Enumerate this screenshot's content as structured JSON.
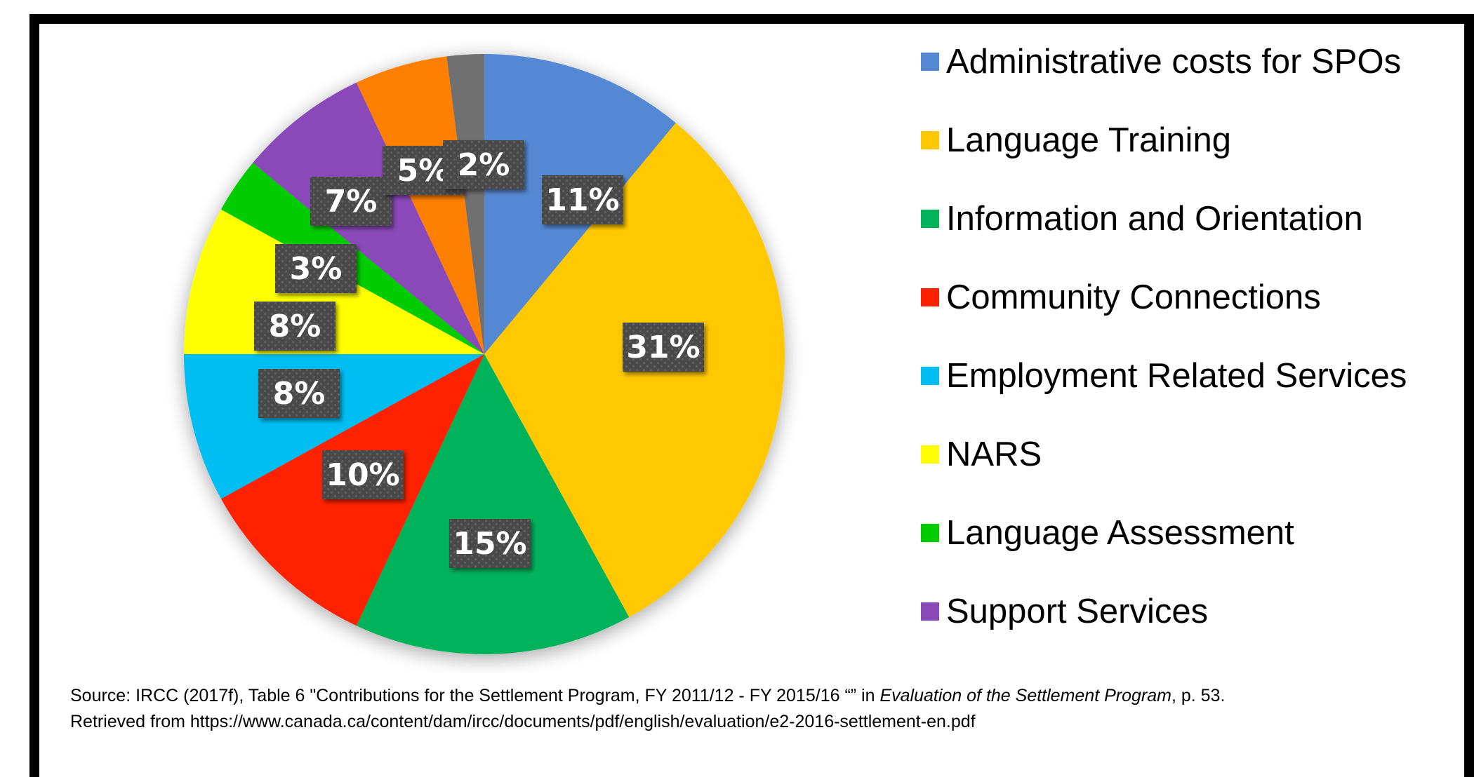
{
  "chart_data": {
    "type": "pie",
    "slices": [
      {
        "name": "Administrative costs for SPOs",
        "value": 11,
        "label": "11%",
        "color": "#5588D3"
      },
      {
        "name": "Language Training",
        "value": 31,
        "label": "31%",
        "color": "#FFC800"
      },
      {
        "name": "Information and Orientation",
        "value": 15,
        "label": "15%",
        "color": "#00B35A"
      },
      {
        "name": "Community Connections",
        "value": 10,
        "label": "10%",
        "color": "#FF2000"
      },
      {
        "name": "Employment Related Services",
        "value": 8,
        "label": "8%",
        "color": "#00BDF2"
      },
      {
        "name": "NARS",
        "value": 8,
        "label": "8%",
        "color": "#FFFF00"
      },
      {
        "name": "Language Assessment",
        "value": 3,
        "label": "3%",
        "color": "#00CC00"
      },
      {
        "name": "Support Services",
        "value": 7,
        "label": "7%",
        "color": "#8A48B8"
      },
      {
        "name": "",
        "value": 5,
        "label": "5%",
        "color": "#FF8000"
      },
      {
        "name": "",
        "value": 2,
        "label": "2%",
        "color": "#707070"
      }
    ],
    "legend_position": "right",
    "legend": [
      {
        "label": "Administrative costs for SPOs",
        "color": "#5588D3"
      },
      {
        "label": "Language Training",
        "color": "#FFC800"
      },
      {
        "label": "Information and Orientation",
        "color": "#00B35A"
      },
      {
        "label": "Community Connections",
        "color": "#FF2000"
      },
      {
        "label": "Employment Related Services",
        "color": "#00BDF2"
      },
      {
        "label": "NARS",
        "color": "#FFFF00"
      },
      {
        "label": "Language Assessment",
        "color": "#00CC00"
      },
      {
        "label": "Support Services",
        "color": "#8A48B8"
      }
    ]
  },
  "source": {
    "line1_prefix": "Source: IRCC (2017f), Table 6 \"Contributions for the Settlement Program, FY 2011/12 - FY 2015/16 “” in ",
    "line1_italic": "Evaluation of the Settlement Program",
    "line1_suffix": ", p. 53.",
    "line2": "Retrieved from https://www.canada.ca/content/dam/ircc/documents/pdf/english/evaluation/e2-2016-settlement-en.pdf"
  }
}
